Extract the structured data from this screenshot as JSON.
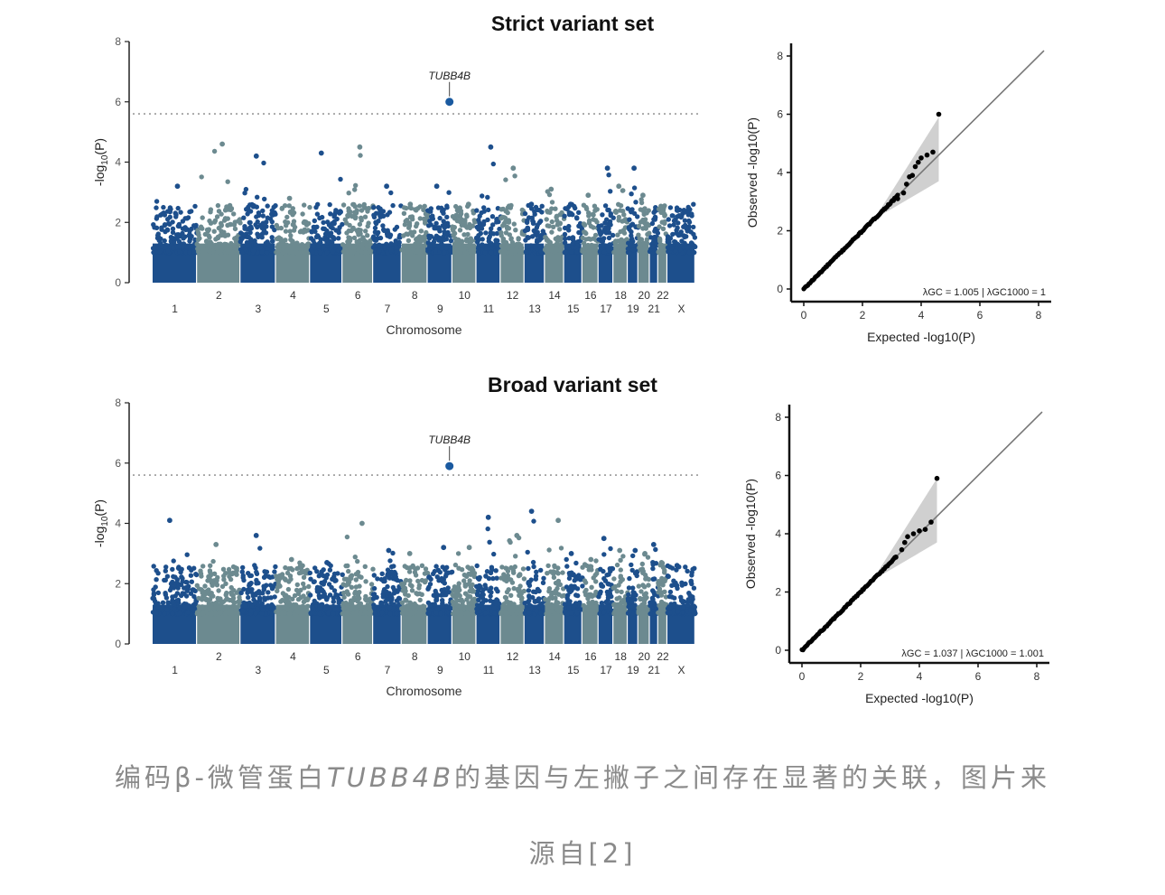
{
  "caption": {
    "before": "编码β-微管蛋白",
    "gene": "TUBB4B",
    "after": "的基因与左撇子之间存在显著的关联，图片来",
    "line2": "源自[2]"
  },
  "chart_data": [
    {
      "type": "scatter",
      "subtype": "manhattan",
      "title": "Strict variant set",
      "xlabel": "Chromosome",
      "ylabel": "-log10(P)",
      "ylim": [
        0,
        8
      ],
      "yticks": [
        0,
        2,
        4,
        6,
        8
      ],
      "significance_threshold": 5.6,
      "chromosomes": [
        "1",
        "2",
        "3",
        "4",
        "5",
        "6",
        "7",
        "8",
        "9",
        "10",
        "11",
        "12",
        "13",
        "14",
        "15",
        "16",
        "17",
        "18",
        "19",
        "20",
        "21",
        "22",
        "X"
      ],
      "chromosome_weights": [
        248,
        242,
        198,
        190,
        181,
        171,
        159,
        145,
        138,
        134,
        135,
        133,
        114,
        107,
        102,
        90,
        83,
        80,
        59,
        64,
        47,
        51,
        156
      ],
      "chromosome_peaks": [
        3.2,
        4.6,
        4.2,
        2.8,
        4.3,
        4.5,
        3.2,
        2.6,
        3.2,
        2.6,
        4.5,
        3.8,
        2.6,
        3.1,
        2.6,
        2.9,
        3.8,
        3.2,
        3.8,
        2.9,
        2.4,
        2.4,
        2.4
      ],
      "lead_snp": {
        "gene": "TUBB4B",
        "chromosome": "9",
        "position": 0.88,
        "value": 6.0
      }
    },
    {
      "type": "scatter",
      "subtype": "qq",
      "xlabel": "Expected -log10(P)",
      "ylabel": "Observed -log10(P)",
      "xlim": [
        0,
        8
      ],
      "ylim": [
        0,
        8
      ],
      "xticks": [
        0,
        2,
        4,
        6,
        8
      ],
      "yticks": [
        0,
        2,
        4,
        6,
        8
      ],
      "lambda_text": "λGC = 1.005 | λGC1000 = 1",
      "tail_points": [
        [
          3.2,
          3.1
        ],
        [
          3.4,
          3.3
        ],
        [
          3.5,
          3.6
        ],
        [
          3.6,
          3.85
        ],
        [
          3.7,
          3.9
        ],
        [
          3.8,
          4.2
        ],
        [
          3.9,
          4.35
        ],
        [
          4.0,
          4.5
        ],
        [
          4.2,
          4.6
        ],
        [
          4.4,
          4.7
        ],
        [
          4.6,
          6.0
        ]
      ]
    },
    {
      "type": "scatter",
      "subtype": "manhattan",
      "title": "Broad variant set",
      "xlabel": "Chromosome",
      "ylabel": "-log10(P)",
      "ylim": [
        0,
        8
      ],
      "yticks": [
        0,
        2,
        4,
        6,
        8
      ],
      "significance_threshold": 5.6,
      "chromosomes": [
        "1",
        "2",
        "3",
        "4",
        "5",
        "6",
        "7",
        "8",
        "9",
        "10",
        "11",
        "12",
        "13",
        "14",
        "15",
        "16",
        "17",
        "18",
        "19",
        "20",
        "21",
        "22",
        "X"
      ],
      "chromosome_weights": [
        248,
        242,
        198,
        190,
        181,
        171,
        159,
        145,
        138,
        134,
        135,
        133,
        114,
        107,
        102,
        90,
        83,
        80,
        59,
        64,
        47,
        51,
        156
      ],
      "chromosome_peaks": [
        4.1,
        3.3,
        3.6,
        2.8,
        2.7,
        4.0,
        3.1,
        3.0,
        3.2,
        3.2,
        4.2,
        3.6,
        4.4,
        4.1,
        3.0,
        2.8,
        3.5,
        3.1,
        3.1,
        3.0,
        3.3,
        2.7,
        2.6
      ],
      "lead_snp": {
        "gene": "TUBB4B",
        "chromosome": "9",
        "position": 0.88,
        "value": 5.9
      }
    },
    {
      "type": "scatter",
      "subtype": "qq",
      "xlabel": "Expected -log10(P)",
      "ylabel": "Observed -log10(P)",
      "xlim": [
        0,
        8
      ],
      "ylim": [
        0,
        8
      ],
      "xticks": [
        0,
        2,
        4,
        6,
        8
      ],
      "yticks": [
        0,
        2,
        4,
        6,
        8
      ],
      "lambda_text": "λGC = 1.037 | λGC1000 = 1.001",
      "tail_points": [
        [
          3.2,
          3.2
        ],
        [
          3.4,
          3.45
        ],
        [
          3.5,
          3.7
        ],
        [
          3.6,
          3.9
        ],
        [
          3.8,
          4.0
        ],
        [
          4.0,
          4.1
        ],
        [
          4.2,
          4.15
        ],
        [
          4.4,
          4.4
        ],
        [
          4.6,
          5.9
        ]
      ]
    }
  ],
  "colors": {
    "dark_blue": "#1d4f8c",
    "grey_teal": "#6c8a90",
    "lead_snp": "#1a5aa0",
    "threshold_line": "#999999",
    "diagonal": "#777777",
    "confidence_band": "#d0d0d0",
    "qq_points": "#000000"
  }
}
